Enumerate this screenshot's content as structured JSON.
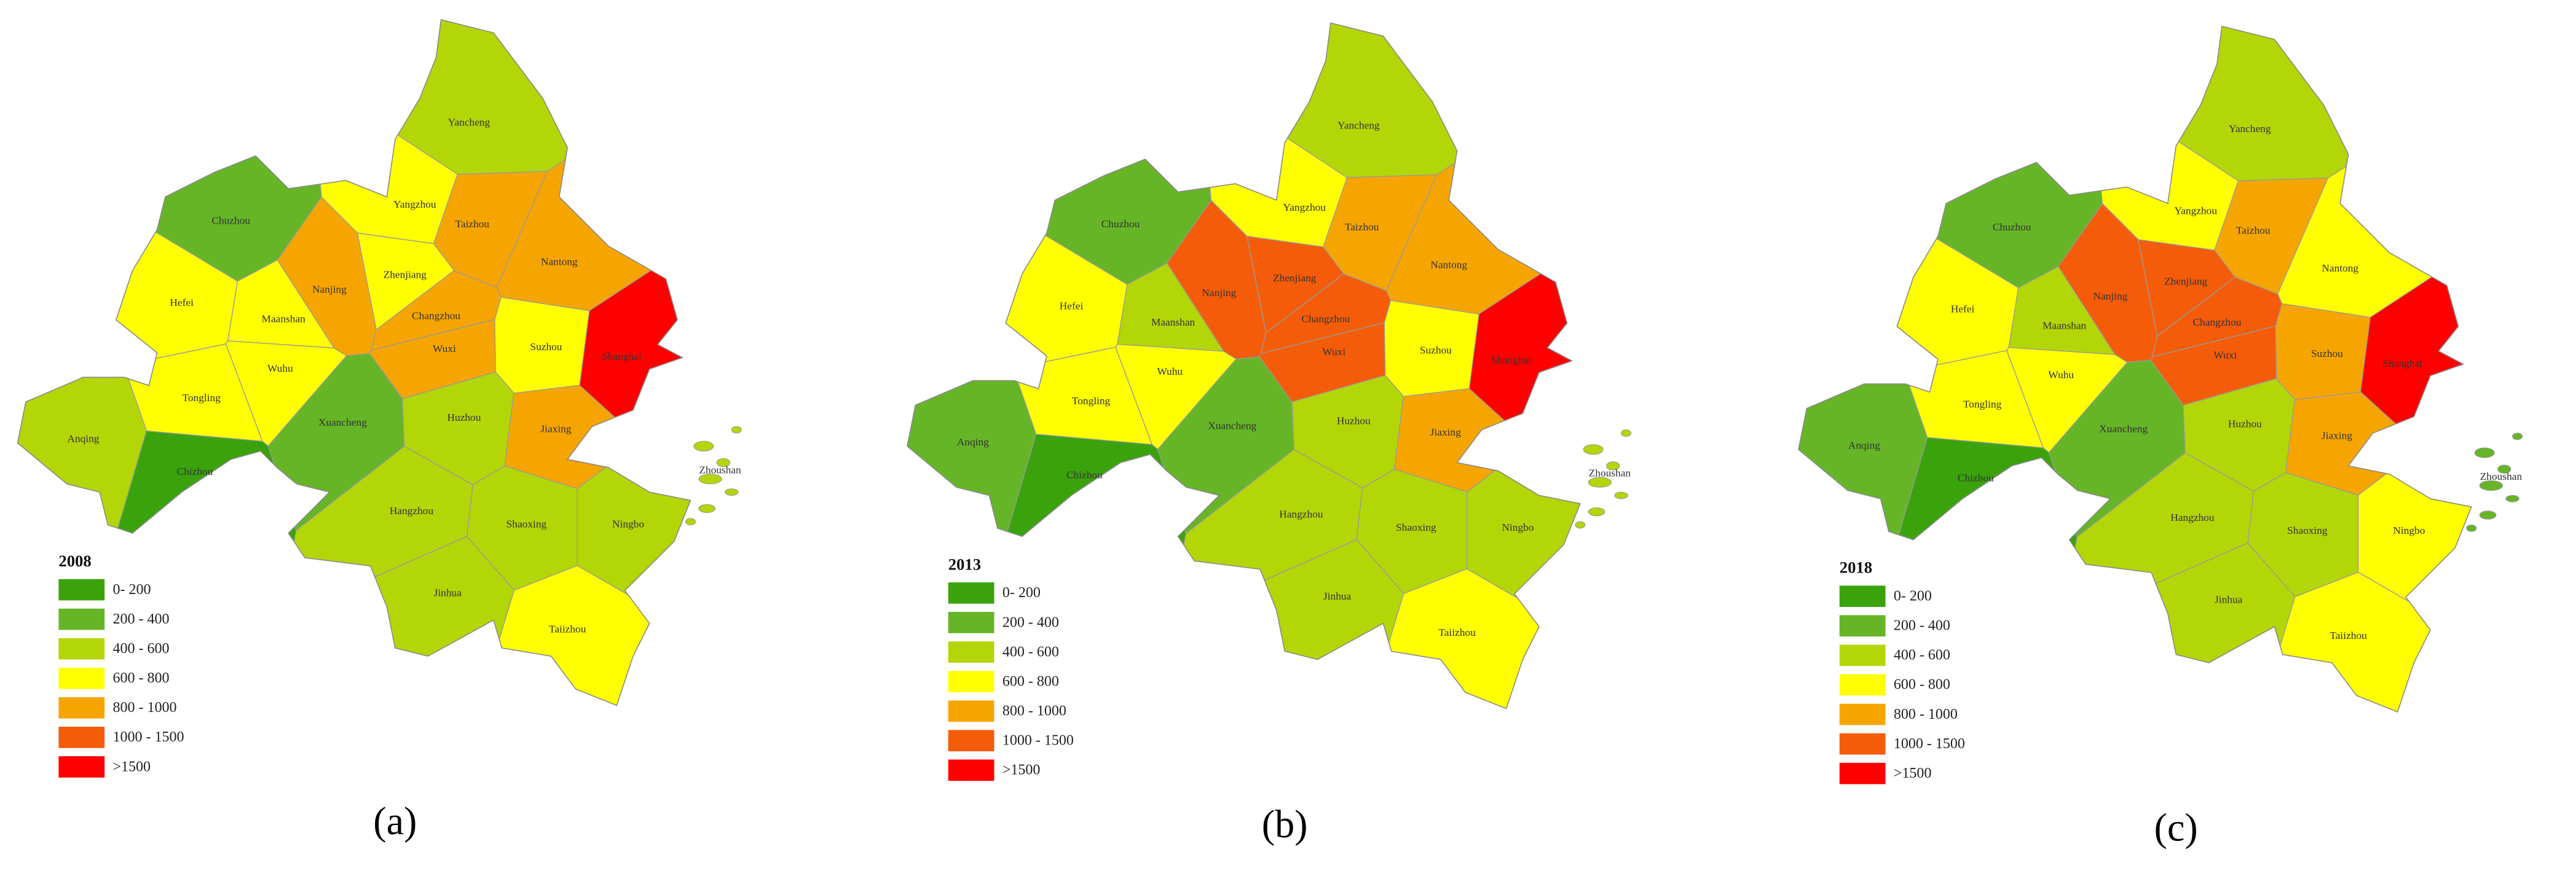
{
  "legend": [
    {
      "label": "0- 200",
      "color": "#3aa30c"
    },
    {
      "label": "200 - 400",
      "color": "#66b527"
    },
    {
      "label": "400 - 600",
      "color": "#b3d607"
    },
    {
      "label": "600 - 800",
      "color": "#ffff00"
    },
    {
      "label": "800 - 1000",
      "color": "#f6a500"
    },
    {
      "label": "1000 - 1500",
      "color": "#f55c0a"
    },
    {
      "label": ">1500",
      "color": "#ff0000"
    }
  ],
  "panels": [
    {
      "year": "2008",
      "caption": "(a)",
      "cities": [
        {
          "name": "Yancheng",
          "color": "#b3d607"
        },
        {
          "name": "Yangzhou",
          "color": "#ffff00"
        },
        {
          "name": "Taizhou",
          "color": "#f6a500"
        },
        {
          "name": "Chuzhou",
          "color": "#66b527"
        },
        {
          "name": "Nantong",
          "color": "#f6a500"
        },
        {
          "name": "Nanjing",
          "color": "#f6a500"
        },
        {
          "name": "Zhenjiang",
          "color": "#ffff00"
        },
        {
          "name": "Hefei",
          "color": "#ffff00"
        },
        {
          "name": "Maanshan",
          "color": "#ffff00"
        },
        {
          "name": "Changzhou",
          "color": "#f6a500"
        },
        {
          "name": "Shanghai",
          "color": "#ff0000"
        },
        {
          "name": "Wuxi",
          "color": "#f6a500"
        },
        {
          "name": "Suzhou",
          "color": "#ffff00"
        },
        {
          "name": "Wuhu",
          "color": "#ffff00"
        },
        {
          "name": "Tongling",
          "color": "#ffff00"
        },
        {
          "name": "Xuancheng",
          "color": "#66b527"
        },
        {
          "name": "Huzhou",
          "color": "#b3d607"
        },
        {
          "name": "Jiaxing",
          "color": "#f6a500"
        },
        {
          "name": "Anqing",
          "color": "#b3d607"
        },
        {
          "name": "Chizhou",
          "color": "#3aa30c"
        },
        {
          "name": "Hangzhou",
          "color": "#b3d607"
        },
        {
          "name": "Shaoxing",
          "color": "#b3d607"
        },
        {
          "name": "Ningbo",
          "color": "#b3d607"
        },
        {
          "name": "Jinhua",
          "color": "#b3d607"
        },
        {
          "name": "Taiizhou",
          "color": "#ffff00"
        },
        {
          "name": "Zhoushan",
          "color": "#b3d607"
        }
      ]
    },
    {
      "year": "2013",
      "caption": "(b)",
      "cities": [
        {
          "name": "Yancheng",
          "color": "#b3d607"
        },
        {
          "name": "Yangzhou",
          "color": "#ffff00"
        },
        {
          "name": "Taizhou",
          "color": "#f6a500"
        },
        {
          "name": "Chuzhou",
          "color": "#66b527"
        },
        {
          "name": "Nantong",
          "color": "#f6a500"
        },
        {
          "name": "Nanjing",
          "color": "#f55c0a"
        },
        {
          "name": "Zhenjiang",
          "color": "#f55c0a"
        },
        {
          "name": "Hefei",
          "color": "#ffff00"
        },
        {
          "name": "Maanshan",
          "color": "#b3d607"
        },
        {
          "name": "Changzhou",
          "color": "#f55c0a"
        },
        {
          "name": "Shanghai",
          "color": "#ff0000"
        },
        {
          "name": "Wuxi",
          "color": "#f55c0a"
        },
        {
          "name": "Suzhou",
          "color": "#ffff00"
        },
        {
          "name": "Wuhu",
          "color": "#ffff00"
        },
        {
          "name": "Tongling",
          "color": "#ffff00"
        },
        {
          "name": "Xuancheng",
          "color": "#66b527"
        },
        {
          "name": "Huzhou",
          "color": "#b3d607"
        },
        {
          "name": "Jiaxing",
          "color": "#f6a500"
        },
        {
          "name": "Anqing",
          "color": "#66b527"
        },
        {
          "name": "Chizhou",
          "color": "#3aa30c"
        },
        {
          "name": "Hangzhou",
          "color": "#b3d607"
        },
        {
          "name": "Shaoxing",
          "color": "#b3d607"
        },
        {
          "name": "Ningbo",
          "color": "#b3d607"
        },
        {
          "name": "Jinhua",
          "color": "#b3d607"
        },
        {
          "name": "Taiizhou",
          "color": "#ffff00"
        },
        {
          "name": "Zhoushan",
          "color": "#b3d607"
        }
      ]
    },
    {
      "year": "2018",
      "caption": "(c)",
      "cities": [
        {
          "name": "Yancheng",
          "color": "#b3d607"
        },
        {
          "name": "Yangzhou",
          "color": "#ffff00"
        },
        {
          "name": "Taizhou",
          "color": "#f6a500"
        },
        {
          "name": "Chuzhou",
          "color": "#66b527"
        },
        {
          "name": "Nantong",
          "color": "#ffff00"
        },
        {
          "name": "Nanjing",
          "color": "#f55c0a"
        },
        {
          "name": "Zhenjiang",
          "color": "#f55c0a"
        },
        {
          "name": "Hefei",
          "color": "#ffff00"
        },
        {
          "name": "Maanshan",
          "color": "#b3d607"
        },
        {
          "name": "Changzhou",
          "color": "#f55c0a"
        },
        {
          "name": "Shanghai",
          "color": "#ff0000"
        },
        {
          "name": "Wuxi",
          "color": "#f55c0a"
        },
        {
          "name": "Suzhou",
          "color": "#f6a500"
        },
        {
          "name": "Wuhu",
          "color": "#ffff00"
        },
        {
          "name": "Tongling",
          "color": "#ffff00"
        },
        {
          "name": "Xuancheng",
          "color": "#66b527"
        },
        {
          "name": "Huzhou",
          "color": "#b3d607"
        },
        {
          "name": "Jiaxing",
          "color": "#f6a500"
        },
        {
          "name": "Anqing",
          "color": "#66b527"
        },
        {
          "name": "Chizhou",
          "color": "#3aa30c"
        },
        {
          "name": "Hangzhou",
          "color": "#b3d607"
        },
        {
          "name": "Shaoxing",
          "color": "#b3d607"
        },
        {
          "name": "Ningbo",
          "color": "#ffff00"
        },
        {
          "name": "Jinhua",
          "color": "#b3d607"
        },
        {
          "name": "Taiizhou",
          "color": "#ffff00"
        },
        {
          "name": "Zhoushan",
          "color": "#66b527"
        }
      ]
    }
  ]
}
